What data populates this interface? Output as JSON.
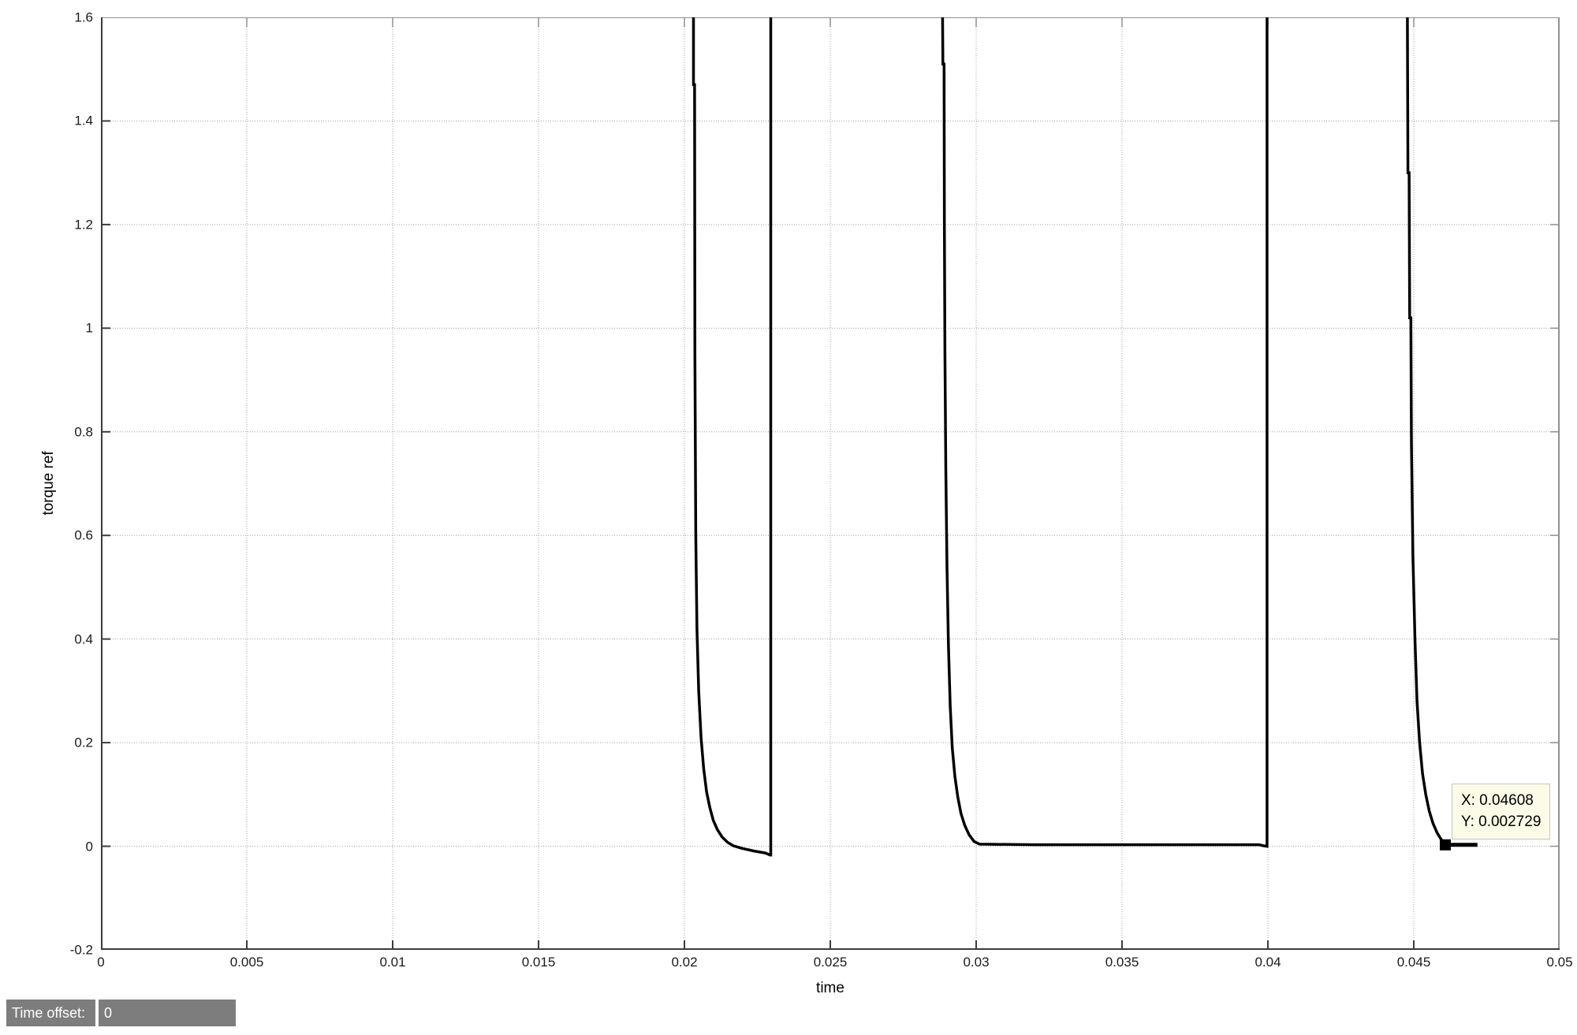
{
  "chart_data": {
    "type": "line",
    "title": "",
    "xlabel": "time",
    "ylabel": "torque ref",
    "xlim": [
      0,
      0.05
    ],
    "ylim": [
      -0.2,
      1.6
    ],
    "grid": true,
    "x_ticks": [
      0,
      0.005,
      0.01,
      0.015,
      0.02,
      0.025,
      0.03,
      0.035,
      0.04,
      0.045,
      0.05
    ],
    "x_tick_labels": [
      "0",
      "0.005",
      "0.01",
      "0.015",
      "0.02",
      "0.025",
      "0.03",
      "0.035",
      "0.04",
      "0.045",
      "0.05"
    ],
    "y_ticks": [
      -0.2,
      0,
      0.2,
      0.4,
      0.6,
      0.8,
      1,
      1.2,
      1.4,
      1.6
    ],
    "y_tick_labels": [
      "-0.2",
      "0",
      "0.2",
      "0.4",
      "0.6",
      "0.8",
      "1",
      "1.2",
      "1.4",
      "1.6"
    ],
    "series": [
      {
        "name": "torque ref",
        "color": "#000000",
        "segments": [
          {
            "points": [
              [
                0.02031,
                1.6
              ],
              [
                0.02031,
                1.47
              ],
              [
                0.02035,
                1.47
              ],
              [
                0.02036,
                0.95
              ],
              [
                0.02039,
                0.6
              ],
              [
                0.02043,
                0.42
              ],
              [
                0.02049,
                0.3
              ],
              [
                0.02057,
                0.21
              ],
              [
                0.02066,
                0.15
              ],
              [
                0.02076,
                0.105
              ],
              [
                0.02087,
                0.075
              ],
              [
                0.02099,
                0.05
              ],
              [
                0.02113,
                0.032
              ],
              [
                0.02129,
                0.018
              ],
              [
                0.02147,
                0.008
              ],
              [
                0.02167,
                0.001
              ],
              [
                0.02197,
                -0.004
              ],
              [
                0.02237,
                -0.009
              ],
              [
                0.02277,
                -0.013
              ],
              [
                0.02294,
                -0.017
              ],
              [
                0.02296,
                -0.017
              ],
              [
                0.02296,
                1.6
              ]
            ]
          },
          {
            "points": [
              [
                0.02885,
                1.6
              ],
              [
                0.02886,
                1.51
              ],
              [
                0.0289,
                1.51
              ],
              [
                0.02891,
                1.2
              ],
              [
                0.02893,
                0.95
              ],
              [
                0.02896,
                0.73
              ],
              [
                0.029,
                0.54
              ],
              [
                0.02905,
                0.39
              ],
              [
                0.02911,
                0.27
              ],
              [
                0.02918,
                0.19
              ],
              [
                0.02927,
                0.135
              ],
              [
                0.02937,
                0.095
              ],
              [
                0.02948,
                0.063
              ],
              [
                0.02961,
                0.04
              ],
              [
                0.02976,
                0.022
              ],
              [
                0.02993,
                0.009
              ],
              [
                0.03012,
                0.004
              ],
              [
                0.032,
                0.003
              ],
              [
                0.0397,
                0.003
              ],
              [
                0.03984,
                0.001
              ],
              [
                0.03997,
                0.0
              ],
              [
                0.03997,
                1.6
              ]
            ]
          },
          {
            "points": [
              [
                0.04478,
                1.6
              ],
              [
                0.0448,
                1.3
              ],
              [
                0.04484,
                1.3
              ],
              [
                0.04486,
                1.02
              ],
              [
                0.0449,
                1.02
              ],
              [
                0.04492,
                0.78
              ],
              [
                0.04497,
                0.56
              ],
              [
                0.04504,
                0.4
              ],
              [
                0.04511,
                0.28
              ],
              [
                0.0452,
                0.2
              ],
              [
                0.0453,
                0.14
              ],
              [
                0.04541,
                0.1
              ],
              [
                0.04553,
                0.068
              ],
              [
                0.04566,
                0.044
              ],
              [
                0.0458,
                0.026
              ],
              [
                0.04594,
                0.013
              ],
              [
                0.04608,
                0.0055
              ],
              [
                0.04612,
                0.0035
              ]
            ]
          },
          {
            "points": [
              [
                0.04608,
                0.0027
              ],
              [
                0.04718,
                0.0027
              ]
            ],
            "emphasis": true
          }
        ]
      }
    ],
    "marker": {
      "x": 0.04608,
      "y": 0.002729
    }
  },
  "datatip": {
    "x_text": "X: 0.04608",
    "y_text": "Y: 0.002729",
    "bg": "#fbfbe8"
  },
  "status_bar": {
    "label": "Time offset:",
    "value": "0",
    "bg": "#7d7d7d",
    "text_color": "#ffffff"
  },
  "colors": {
    "curve": "#000000",
    "grid": "#a0a0a0",
    "axis_dark": "#3c3c3c",
    "axis_light": "#909090",
    "tick_text": "#1a1a1a"
  }
}
